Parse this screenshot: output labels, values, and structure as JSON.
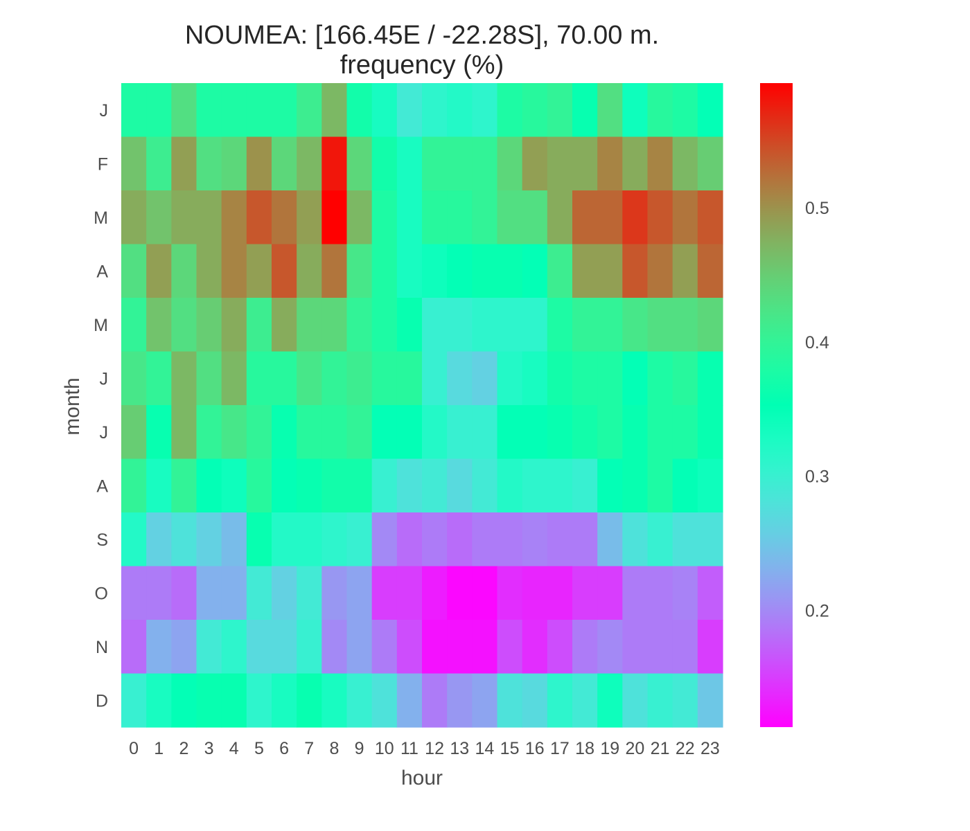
{
  "chart_data": {
    "type": "heatmap",
    "title": "NOUMEA: [166.45E / -22.28S], 70.00 m.",
    "subtitle": "frequency (%)",
    "xlabel": "hour",
    "ylabel": "month",
    "x": [
      "0",
      "1",
      "2",
      "3",
      "4",
      "5",
      "6",
      "7",
      "8",
      "9",
      "10",
      "11",
      "12",
      "13",
      "14",
      "15",
      "16",
      "17",
      "18",
      "19",
      "20",
      "21",
      "22",
      "23"
    ],
    "y": [
      "J",
      "F",
      "M",
      "A",
      "M",
      "J",
      "J",
      "A",
      "S",
      "O",
      "N",
      "D"
    ],
    "colormap": "rainbow",
    "color_range": [
      0.113,
      0.593
    ],
    "colorbar_ticks": [
      0.2,
      0.3,
      0.4,
      0.5
    ],
    "colorbar_tick_labels": [
      "0.2",
      "0.3",
      "0.4",
      "0.5"
    ],
    "values": [
      [
        0.38,
        0.38,
        0.43,
        0.38,
        0.38,
        0.38,
        0.38,
        0.41,
        0.47,
        0.37,
        0.33,
        0.29,
        0.31,
        0.32,
        0.31,
        0.38,
        0.39,
        0.4,
        0.36,
        0.43,
        0.34,
        0.39,
        0.38,
        0.35
      ],
      [
        0.46,
        0.41,
        0.49,
        0.43,
        0.44,
        0.5,
        0.44,
        0.47,
        0.58,
        0.44,
        0.37,
        0.33,
        0.4,
        0.4,
        0.4,
        0.44,
        0.49,
        0.48,
        0.48,
        0.51,
        0.48,
        0.51,
        0.47,
        0.45
      ],
      [
        0.48,
        0.46,
        0.48,
        0.48,
        0.51,
        0.54,
        0.52,
        0.49,
        0.593,
        0.47,
        0.38,
        0.33,
        0.39,
        0.39,
        0.4,
        0.43,
        0.43,
        0.48,
        0.53,
        0.53,
        0.56,
        0.54,
        0.52,
        0.54
      ],
      [
        0.43,
        0.49,
        0.44,
        0.48,
        0.51,
        0.49,
        0.54,
        0.48,
        0.52,
        0.42,
        0.38,
        0.33,
        0.34,
        0.35,
        0.36,
        0.36,
        0.35,
        0.41,
        0.49,
        0.49,
        0.54,
        0.52,
        0.49,
        0.53
      ],
      [
        0.4,
        0.46,
        0.43,
        0.45,
        0.48,
        0.41,
        0.48,
        0.44,
        0.44,
        0.4,
        0.38,
        0.36,
        0.3,
        0.3,
        0.31,
        0.31,
        0.31,
        0.38,
        0.4,
        0.4,
        0.42,
        0.43,
        0.43,
        0.44
      ],
      [
        0.42,
        0.4,
        0.47,
        0.43,
        0.47,
        0.39,
        0.39,
        0.42,
        0.4,
        0.41,
        0.39,
        0.39,
        0.3,
        0.27,
        0.26,
        0.32,
        0.33,
        0.37,
        0.38,
        0.38,
        0.35,
        0.38,
        0.39,
        0.36
      ],
      [
        0.45,
        0.36,
        0.47,
        0.4,
        0.42,
        0.4,
        0.36,
        0.39,
        0.39,
        0.4,
        0.35,
        0.35,
        0.32,
        0.3,
        0.3,
        0.35,
        0.35,
        0.36,
        0.37,
        0.38,
        0.36,
        0.38,
        0.38,
        0.36
      ],
      [
        0.4,
        0.33,
        0.4,
        0.35,
        0.34,
        0.39,
        0.35,
        0.36,
        0.37,
        0.37,
        0.3,
        0.28,
        0.29,
        0.27,
        0.29,
        0.32,
        0.31,
        0.31,
        0.3,
        0.35,
        0.36,
        0.38,
        0.35,
        0.34
      ],
      [
        0.32,
        0.26,
        0.28,
        0.26,
        0.24,
        0.36,
        0.32,
        0.32,
        0.31,
        0.3,
        0.2,
        0.18,
        0.19,
        0.18,
        0.19,
        0.19,
        0.195,
        0.19,
        0.19,
        0.24,
        0.28,
        0.3,
        0.28,
        0.28
      ],
      [
        0.19,
        0.19,
        0.18,
        0.23,
        0.23,
        0.29,
        0.26,
        0.29,
        0.21,
        0.22,
        0.15,
        0.15,
        0.13,
        0.117,
        0.117,
        0.14,
        0.135,
        0.135,
        0.15,
        0.15,
        0.19,
        0.19,
        0.195,
        0.17
      ],
      [
        0.18,
        0.23,
        0.22,
        0.29,
        0.31,
        0.27,
        0.27,
        0.3,
        0.2,
        0.22,
        0.19,
        0.16,
        0.123,
        0.123,
        0.123,
        0.16,
        0.14,
        0.16,
        0.19,
        0.2,
        0.19,
        0.19,
        0.19,
        0.15
      ],
      [
        0.3,
        0.33,
        0.35,
        0.36,
        0.36,
        0.31,
        0.33,
        0.36,
        0.33,
        0.3,
        0.28,
        0.23,
        0.19,
        0.21,
        0.22,
        0.28,
        0.27,
        0.31,
        0.29,
        0.34,
        0.28,
        0.3,
        0.29,
        0.25
      ]
    ]
  }
}
